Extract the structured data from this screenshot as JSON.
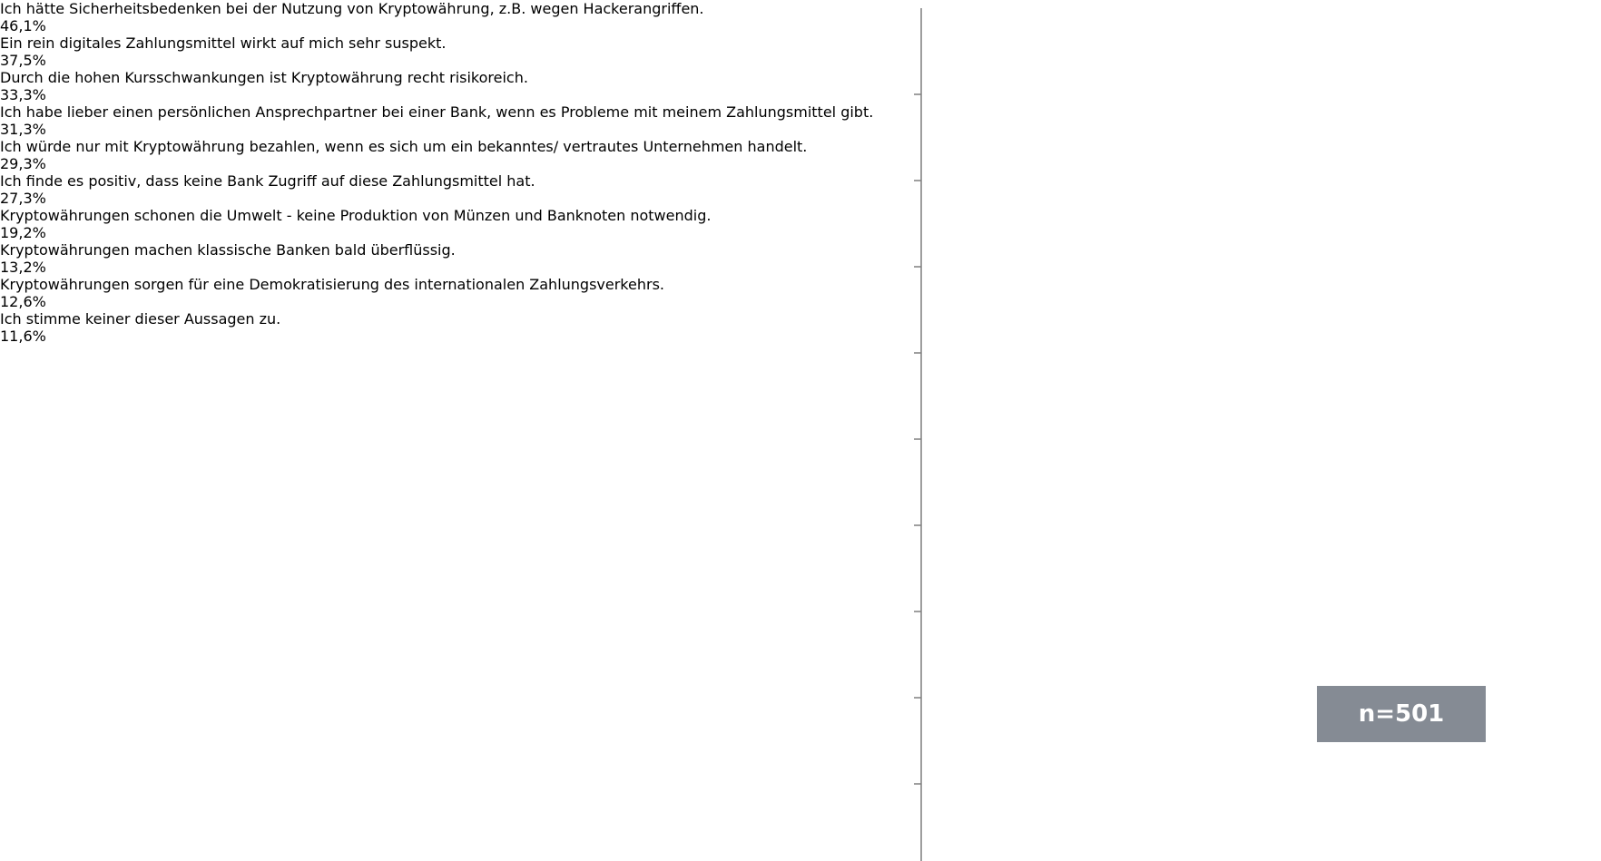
{
  "chart_data": {
    "type": "hbar",
    "categories": [
      "Ich hätte Sicherheitsbedenken bei der Nutzung von Kryptowährung, z.B. wegen Hackerangriffen.",
      "Ein rein digitales Zahlungsmittel wirkt auf mich sehr suspekt.",
      "Durch die hohen Kursschwankungen ist Kryptowährung recht risikoreich.",
      "Ich habe lieber einen persönlichen Ansprechpartner bei einer Bank, wenn es Probleme mit meinem Zahlungsmittel gibt.",
      "Ich würde nur mit Kryptowährung bezahlen, wenn es sich um ein bekanntes/ vertrautes Unternehmen handelt.",
      "Ich finde es positiv, dass keine Bank Zugriff auf diese Zahlungsmittel hat.",
      "Kryptowährungen schonen die Umwelt - keine Produktion von Münzen und Banknoten notwendig.",
      "Kryptowährungen machen klassische Banken bald überflüssig.",
      "Kryptowährungen sorgen für eine Demokratisierung des internationalen Zahlungsverkehrs.",
      "Ich stimme keiner dieser Aussagen zu."
    ],
    "values": [
      46.1,
      37.5,
      33.3,
      31.3,
      29.3,
      27.3,
      19.2,
      13.2,
      12.6,
      11.6
    ],
    "value_labels": [
      "46,1%",
      "37,5%",
      "33,3%",
      "31,3%",
      "29,3%",
      "27,3%",
      "19,2%",
      "13,2%",
      "12,6%",
      "11,6%"
    ],
    "colors": [
      "#bfcc00",
      "#bfcc00",
      "#bfcc00",
      "#bfcc00",
      "#bfcc00",
      "#bfcc00",
      "#bfcc00",
      "#bfcc00",
      "#bfcc00",
      "#858b94"
    ],
    "xlim": [
      0,
      55
    ],
    "annotation": "n=501"
  }
}
